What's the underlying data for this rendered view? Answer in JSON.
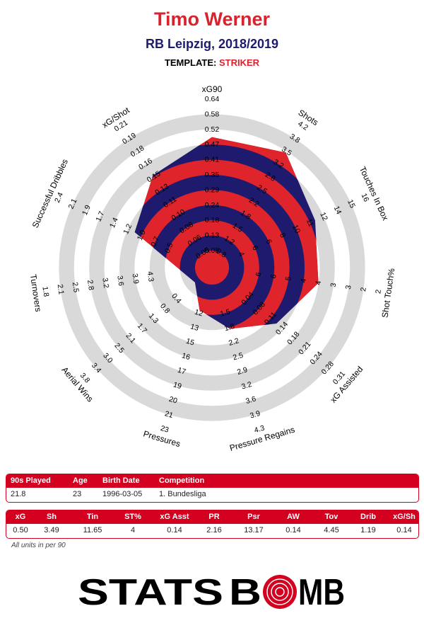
{
  "header": {
    "title": "Timo Werner",
    "subtitle": "RB Leipzig, 2018/2019",
    "template_label": "TEMPLATE:",
    "template_value": "STRIKER"
  },
  "chart_data": {
    "type": "radar",
    "series": [
      {
        "values": [
          0.5,
          3.49,
          11.65,
          4,
          0.14,
          2.16,
          13.17,
          0.14,
          4.45,
          1.19,
          0.14
        ]
      }
    ],
    "axes": [
      {
        "label": "xG90",
        "ticks": [
          "0.08",
          "0.13",
          "0.18",
          "0.24",
          "0.29",
          "0.35",
          "0.41",
          "0.47",
          "0.52",
          "0.58",
          "0.64"
        ],
        "min": 0.08,
        "max": 0.64
      },
      {
        "label": "Shots",
        "ticks": [
          "0.8",
          "1.2",
          "1.5",
          "1.8",
          "2.2",
          "2.5",
          "2.8",
          "3.2",
          "3.5",
          "3.8",
          "4.2"
        ],
        "min": 0.8,
        "max": 4.2
      },
      {
        "label": "Touches In Box",
        "ticks": [
          "4",
          "6",
          "6",
          "8",
          "10",
          "11",
          "12",
          "14",
          "15",
          "16"
        ],
        "min": 4,
        "max": 16
      },
      {
        "label": "Shot Touch%",
        "ticks": [
          "6",
          "6",
          "5",
          "4",
          "4",
          "3",
          "3",
          "2",
          "2"
        ],
        "min": 7,
        "max": 2
      },
      {
        "label": "xG Assisted",
        "ticks": [
          "0.04",
          "0.08",
          "0.11",
          "0.14",
          "0.18",
          "0.21",
          "0.24",
          "0.28",
          "0.31"
        ],
        "min": 0.0,
        "max": 0.31
      },
      {
        "label": "Pressure Regains",
        "ticks": [
          "1.5",
          "1.8",
          "2.2",
          "2.5",
          "2.9",
          "3.2",
          "3.6",
          "3.9",
          "4.3"
        ],
        "min": 1.2,
        "max": 4.3
      },
      {
        "label": "Pressures",
        "ticks": [
          "12",
          "13",
          "15",
          "16",
          "17",
          "19",
          "20",
          "21",
          "23"
        ],
        "min": 11,
        "max": 23
      },
      {
        "label": "Aerial Wins",
        "ticks": [
          "0.4",
          "0.8",
          "1.3",
          "1.7",
          "2.1",
          "2.5",
          "3.0",
          "3.4",
          "3.8"
        ],
        "min": 0.0,
        "max": 3.8
      },
      {
        "label": "Turnovers",
        "ticks": [
          "4.3",
          "3.9",
          "3.6",
          "3.2",
          "2.8",
          "2.5",
          "2.1",
          "1.8"
        ],
        "min": 4.7,
        "max": 1.8
      },
      {
        "label": "Successful Dribbles",
        "ticks": [
          "0.5",
          "0.7",
          "1.0",
          "1.2",
          "1.4",
          "1.7",
          "1.9",
          "2.1",
          "2.4"
        ],
        "min": 0.2,
        "max": 2.4
      },
      {
        "label": "xG/Shot",
        "ticks": [
          "0.05",
          "0.06",
          "0.08",
          "0.10",
          "0.11",
          "0.13",
          "0.15",
          "0.16",
          "0.18",
          "0.19",
          "0.21"
        ],
        "min": 0.03,
        "max": 0.21
      }
    ],
    "colors": {
      "ring": "#d9d9d9",
      "fill_red": "#e0242c",
      "fill_blue": "#1e1a6e"
    }
  },
  "info_table": {
    "headers": [
      "90s Played",
      "Age",
      "Birth Date",
      "Competition"
    ],
    "values": [
      "21.8",
      "23",
      "1996-03-05",
      "1. Bundesliga"
    ]
  },
  "stats_table": {
    "headers": [
      "xG",
      "Sh",
      "Tin",
      "ST%",
      "xG Asst",
      "PR",
      "Psr",
      "AW",
      "Tov",
      "Drib",
      "xG/Sh"
    ],
    "values": [
      "0.50",
      "3.49",
      "11.65",
      "4",
      "0.14",
      "2.16",
      "13.17",
      "0.14",
      "4.45",
      "1.19",
      "0.14"
    ]
  },
  "footnote": "All units in per 90",
  "logo": {
    "text": "STATSBOMB",
    "color": "#000000",
    "accent": "#d3001f"
  }
}
